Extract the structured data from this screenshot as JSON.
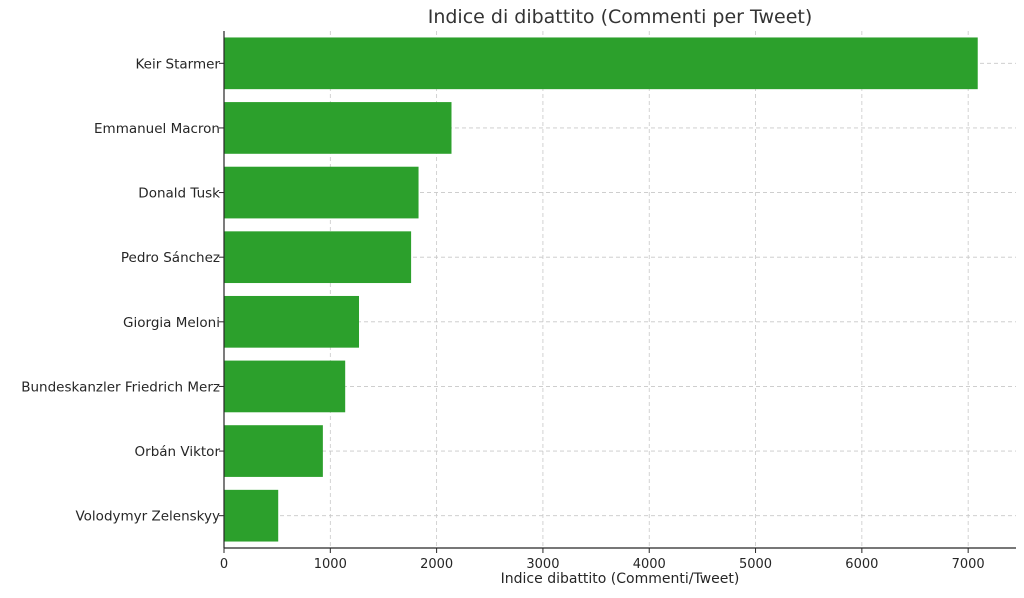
{
  "chart_data": {
    "type": "bar",
    "orientation": "horizontal",
    "title": "Indice di dibattito (Commenti per Tweet)",
    "xlabel": "Indice dibattito (Commenti/Tweet)",
    "ylabel": "",
    "categories": [
      "Keir Starmer",
      "Emmanuel Macron",
      "Donald Tusk",
      "Pedro Sánchez",
      "Giorgia Meloni",
      "Bundeskanzler Friedrich Merz",
      "Orbán Viktor",
      "Volodymyr Zelenskyy"
    ],
    "values": [
      7090,
      2140,
      1830,
      1760,
      1270,
      1140,
      930,
      510
    ],
    "xlim": [
      0,
      7450
    ],
    "xticks": [
      0,
      1000,
      2000,
      3000,
      4000,
      5000,
      6000,
      7000
    ],
    "grid": true,
    "bar_color": "#2ca02c"
  }
}
